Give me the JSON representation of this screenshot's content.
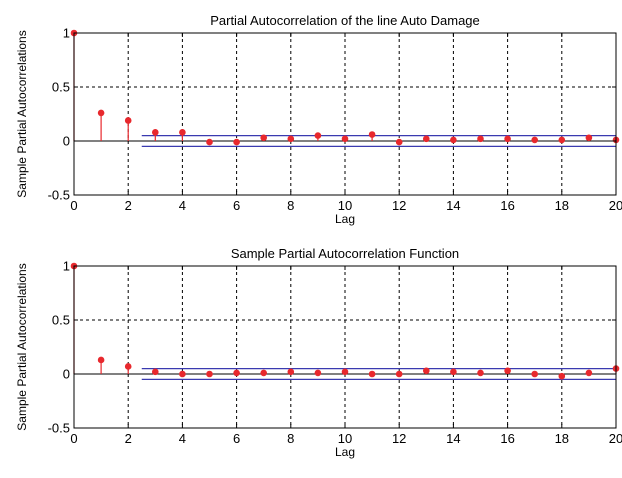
{
  "chart_data": [
    {
      "type": "stem",
      "title": "Partial Autocorrelation of the line Auto Damage",
      "xlabel": "Lag",
      "ylabel": "Sample Partial Autocorrelations",
      "xlim": [
        0,
        20
      ],
      "ylim": [
        -0.5,
        1
      ],
      "xticks": [
        "0",
        "2",
        "4",
        "6",
        "8",
        "10",
        "12",
        "14",
        "16",
        "18",
        "20"
      ],
      "yticks": [
        "-0.5",
        "0",
        "0.5",
        "1"
      ],
      "grid": true,
      "lags": [
        0,
        1,
        2,
        3,
        4,
        5,
        6,
        7,
        8,
        9,
        10,
        11,
        12,
        13,
        14,
        15,
        16,
        17,
        18,
        19,
        20
      ],
      "values": [
        1.0,
        0.26,
        0.19,
        0.08,
        0.08,
        -0.01,
        -0.01,
        0.03,
        0.02,
        0.05,
        0.02,
        0.06,
        -0.01,
        0.02,
        0.01,
        0.02,
        0.02,
        0.01,
        0.01,
        0.03,
        0.01
      ],
      "confidence_bounds": [
        0.05,
        -0.05
      ],
      "colors": {
        "stem": "#e8282d",
        "marker": "#e8282d",
        "bounds": "#3a3ab0"
      }
    },
    {
      "type": "stem",
      "title": "Sample Partial Autocorrelation Function",
      "xlabel": "Lag",
      "ylabel": "Sample Partial Autocorrelations",
      "xlim": [
        0,
        20
      ],
      "ylim": [
        -0.5,
        1
      ],
      "xticks": [
        "0",
        "2",
        "4",
        "6",
        "8",
        "10",
        "12",
        "14",
        "16",
        "18",
        "20"
      ],
      "yticks": [
        "-0.5",
        "0",
        "0.5",
        "1"
      ],
      "grid": true,
      "lags": [
        0,
        1,
        2,
        3,
        4,
        5,
        6,
        7,
        8,
        9,
        10,
        11,
        12,
        13,
        14,
        15,
        16,
        17,
        18,
        19,
        20
      ],
      "values": [
        1.0,
        0.13,
        0.07,
        0.02,
        0.0,
        0.0,
        0.01,
        0.01,
        0.02,
        0.01,
        0.02,
        0.0,
        0.0,
        0.03,
        0.02,
        0.01,
        0.03,
        0.0,
        -0.02,
        0.01,
        0.05
      ],
      "confidence_bounds": [
        0.05,
        -0.05
      ],
      "colors": {
        "stem": "#e8282d",
        "marker": "#e8282d",
        "bounds": "#3a3ab0"
      }
    }
  ]
}
